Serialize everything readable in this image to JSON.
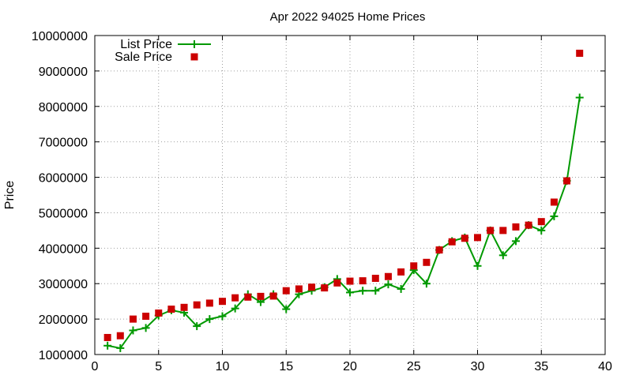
{
  "chart_data": {
    "type": "line",
    "title": "Apr 2022 94025 Home Prices",
    "xlabel": "",
    "ylabel": "Price",
    "xlim": [
      0,
      40
    ],
    "ylim": [
      1000000,
      10000000
    ],
    "xticks": [
      0,
      5,
      10,
      15,
      20,
      25,
      30,
      35,
      40
    ],
    "yticks": [
      1000000,
      2000000,
      3000000,
      4000000,
      5000000,
      6000000,
      7000000,
      8000000,
      9000000,
      10000000
    ],
    "xtick_labels": [
      "0",
      "5",
      "10",
      "15",
      "20",
      "25",
      "30",
      "35",
      "40"
    ],
    "ytick_labels": [
      "1000000",
      "2000000",
      "3000000",
      "4000000",
      "5000000",
      "6000000",
      "7000000",
      "8000000",
      "9000000",
      "10000000"
    ],
    "grid": true,
    "legend_position": "top-left",
    "x": [
      1,
      2,
      3,
      4,
      5,
      6,
      7,
      8,
      9,
      10,
      11,
      12,
      13,
      14,
      15,
      16,
      17,
      18,
      19,
      20,
      21,
      22,
      23,
      24,
      25,
      26,
      27,
      28,
      29,
      30,
      31,
      32,
      33,
      34,
      35,
      36,
      37,
      38
    ],
    "series": [
      {
        "name": "List Price",
        "style": "linespoints",
        "color": "#009900",
        "values": [
          1250000,
          1180000,
          1680000,
          1750000,
          2100000,
          2250000,
          2180000,
          1800000,
          2000000,
          2080000,
          2300000,
          2700000,
          2480000,
          2700000,
          2280000,
          2700000,
          2800000,
          2900000,
          3130000,
          2750000,
          2800000,
          2800000,
          2980000,
          2850000,
          3380000,
          3000000,
          3950000,
          4200000,
          4300000,
          3500000,
          4500000,
          3800000,
          4200000,
          4650000,
          4500000,
          4900000,
          5900000,
          8250000
        ]
      },
      {
        "name": "Sale Price",
        "style": "points",
        "color": "#cc0000",
        "values": [
          1480000,
          1530000,
          2000000,
          2080000,
          2170000,
          2280000,
          2330000,
          2400000,
          2450000,
          2500000,
          2600000,
          2620000,
          2640000,
          2650000,
          2800000,
          2850000,
          2900000,
          2880000,
          3020000,
          3070000,
          3080000,
          3150000,
          3200000,
          3330000,
          3500000,
          3600000,
          3950000,
          4180000,
          4280000,
          4300000,
          4500000,
          4500000,
          4600000,
          4650000,
          4750000,
          5300000,
          5900000,
          9500000
        ]
      }
    ]
  }
}
